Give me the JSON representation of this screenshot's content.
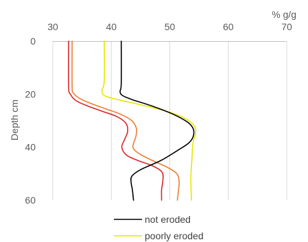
{
  "chart_data": {
    "type": "line",
    "x_unit": "% g/g",
    "ylabel": "Depth cm",
    "xlim": [
      30,
      70
    ],
    "ylim": [
      0,
      60
    ],
    "x_ticks": [
      30,
      40,
      50,
      60,
      70
    ],
    "y_ticks": [
      0,
      20,
      40,
      60
    ],
    "x_axis_position": "top",
    "y_axis_inverted": true,
    "grid": "vertical",
    "legend_position": "bottom",
    "series": [
      {
        "name": "not eroded",
        "color": "#000000",
        "points": [
          [
            41.7,
            0
          ],
          [
            41.7,
            16
          ],
          [
            41.5,
            19
          ],
          [
            41.9,
            20.5
          ],
          [
            43.5,
            22
          ],
          [
            47,
            24.5
          ],
          [
            50.5,
            27.5
          ],
          [
            53,
            30.5
          ],
          [
            54,
            33
          ],
          [
            54,
            36
          ],
          [
            53.2,
            38.5
          ],
          [
            51.5,
            41
          ],
          [
            48.5,
            45
          ],
          [
            45,
            48.5
          ],
          [
            43.5,
            51
          ],
          [
            43.4,
            53.5
          ],
          [
            43.6,
            56
          ],
          [
            43.8,
            60
          ]
        ]
      },
      {
        "name": "poorly eroded",
        "color": "#e6e600",
        "points": [
          [
            38.8,
            0
          ],
          [
            38.8,
            15
          ],
          [
            38.4,
            18.5
          ],
          [
            38.8,
            20.5
          ],
          [
            41,
            22
          ],
          [
            45,
            24
          ],
          [
            49.5,
            26.5
          ],
          [
            52.5,
            29
          ],
          [
            54.2,
            32
          ],
          [
            54.4,
            35
          ],
          [
            54,
            38
          ],
          [
            53.8,
            44
          ],
          [
            53.6,
            52
          ],
          [
            53.7,
            60
          ]
        ]
      },
      {
        "color": "#ed7d31",
        "points": [
          [
            33.3,
            0
          ],
          [
            33.3,
            17
          ],
          [
            33.5,
            19.5
          ],
          [
            34.5,
            21.5
          ],
          [
            36.5,
            23.5
          ],
          [
            39,
            25.5
          ],
          [
            41.5,
            27.5
          ],
          [
            43.5,
            30
          ],
          [
            44.3,
            33
          ],
          [
            44.2,
            36
          ],
          [
            43.7,
            40
          ],
          [
            44.8,
            42.5
          ],
          [
            47,
            45
          ],
          [
            49.5,
            47.5
          ],
          [
            51.2,
            50
          ],
          [
            51.6,
            53
          ],
          [
            51.5,
            56
          ],
          [
            51.3,
            60
          ]
        ]
      },
      {
        "color": "#d62728",
        "points": [
          [
            32.7,
            0
          ],
          [
            32.7,
            17
          ],
          [
            33,
            20
          ],
          [
            34,
            22.5
          ],
          [
            36,
            24.5
          ],
          [
            38.5,
            26.5
          ],
          [
            41,
            28.5
          ],
          [
            42.5,
            31
          ],
          [
            42.8,
            34
          ],
          [
            42.3,
            37
          ],
          [
            41.8,
            40
          ],
          [
            42.6,
            43
          ],
          [
            44.5,
            45
          ],
          [
            47,
            47
          ],
          [
            48.7,
            49.5
          ],
          [
            48.8,
            53
          ],
          [
            48.6,
            56
          ],
          [
            48.6,
            60
          ]
        ]
      }
    ]
  }
}
